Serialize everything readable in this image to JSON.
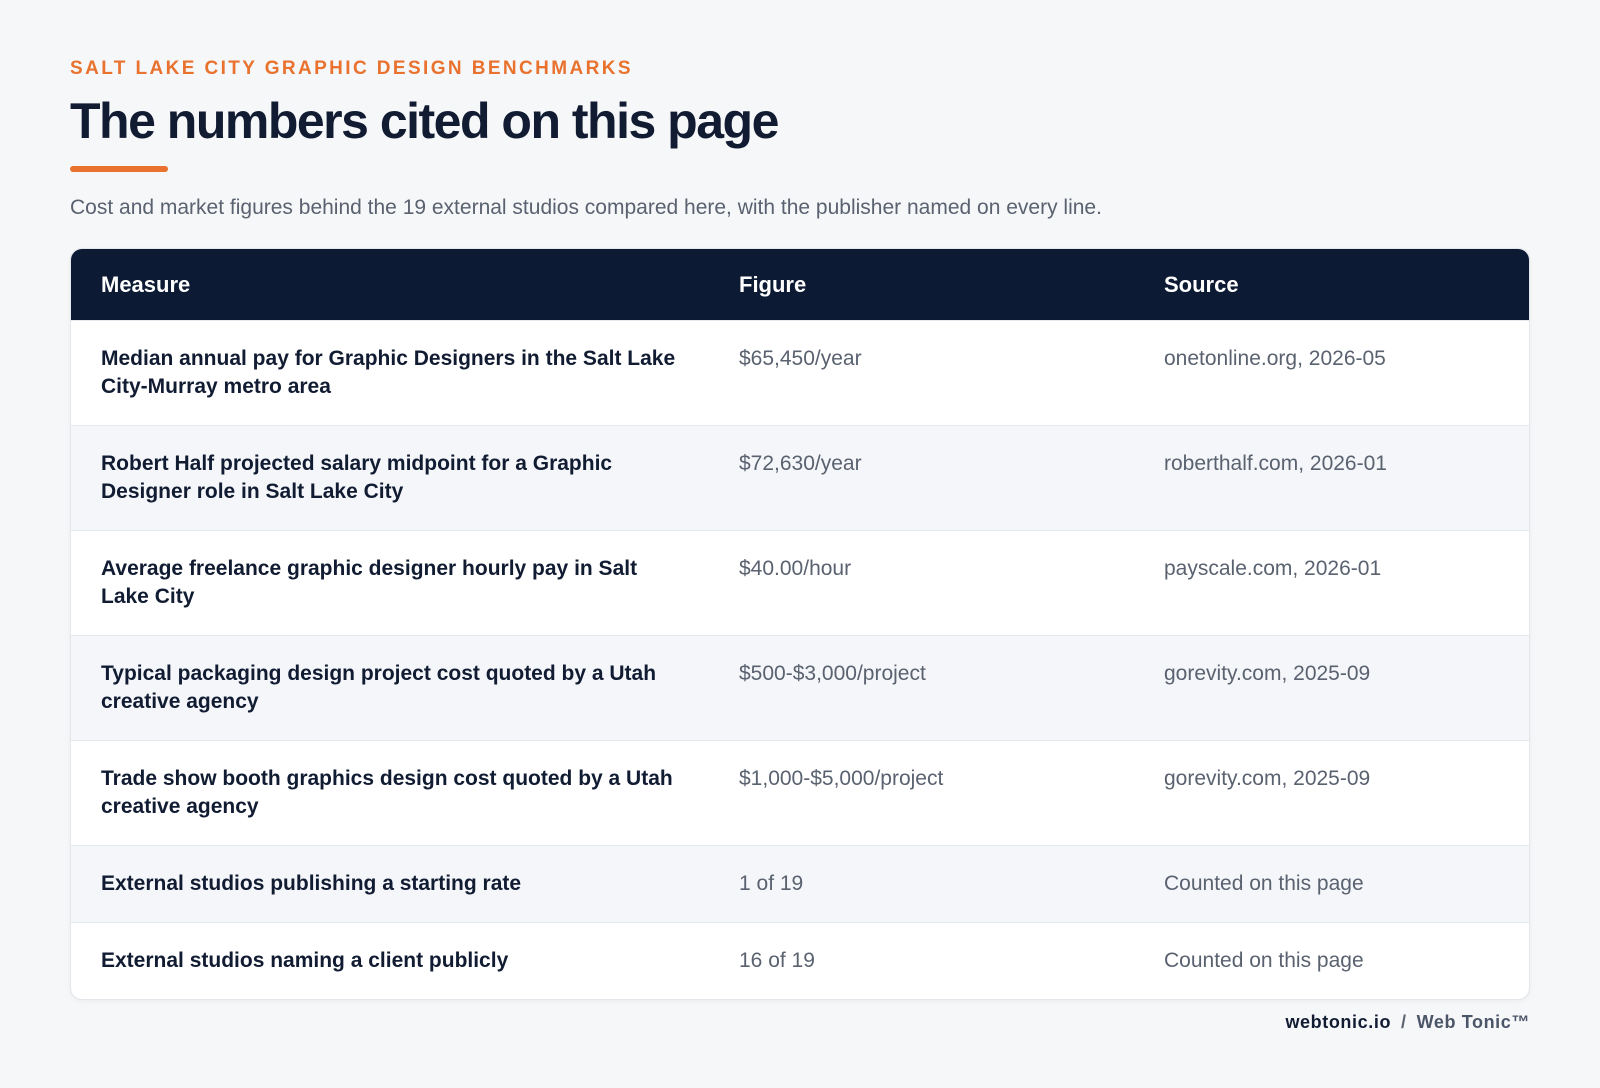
{
  "header": {
    "eyebrow": "SALT LAKE CITY GRAPHIC DESIGN BENCHMARKS",
    "title": "The numbers cited on this page",
    "subtitle": "Cost and market figures behind the 19 external studios compared here, with the publisher named on every line."
  },
  "table": {
    "columns": [
      "Measure",
      "Figure",
      "Source"
    ],
    "rows": [
      [
        "Median annual pay for Graphic Designers in the Salt Lake City-Murray metro area",
        "$65,450/year",
        "onetonline.org, 2026-05"
      ],
      [
        "Robert Half projected salary midpoint for a Graphic Designer role in Salt Lake City",
        "$72,630/year",
        "roberthalf.com, 2026-01"
      ],
      [
        "Average freelance graphic designer hourly pay in Salt Lake City",
        "$40.00/hour",
        "payscale.com, 2026-01"
      ],
      [
        "Typical packaging design project cost quoted by a Utah creative agency",
        "$500-$3,000/project",
        "gorevity.com, 2025-09"
      ],
      [
        "Trade show booth graphics design cost quoted by a Utah creative agency",
        "$1,000-$5,000/project",
        "gorevity.com, 2025-09"
      ],
      [
        "External studios publishing a starting rate",
        "1 of 19",
        "Counted on this page"
      ],
      [
        "External studios naming a client publicly",
        "16 of 19",
        "Counted on this page"
      ]
    ]
  },
  "footer": {
    "domain": "webtonic.io",
    "separator": "/",
    "brand": "Web Tonic™"
  }
}
